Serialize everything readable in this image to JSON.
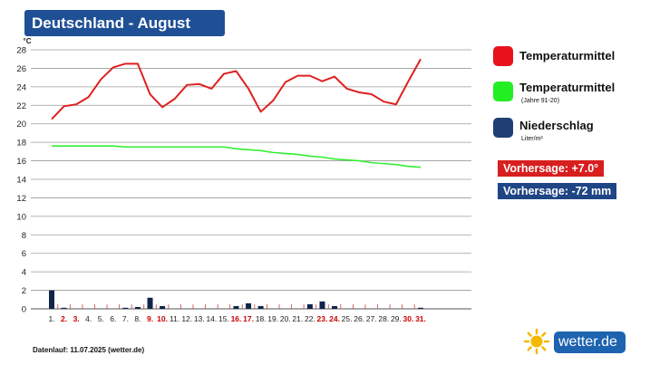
{
  "title": "Deutschland - August",
  "chart_data": {
    "type": "line",
    "ylabel": "°C",
    "ylim": [
      0,
      28
    ],
    "yticks": [
      0,
      2,
      4,
      6,
      8,
      10,
      12,
      14,
      16,
      18,
      20,
      22,
      24,
      26,
      28
    ],
    "categories": [
      "1.",
      "2.",
      "3.",
      "4.",
      "5.",
      "6.",
      "7.",
      "8.",
      "9.",
      "10.",
      "11.",
      "12.",
      "13.",
      "14.",
      "15.",
      "16.",
      "17.",
      "18.",
      "19.",
      "20.",
      "21.",
      "22.",
      "23.",
      "24.",
      "25.",
      "26.",
      "27.",
      "28.",
      "29.",
      "30.",
      "31."
    ],
    "highlight_days": [
      "2.",
      "3.",
      "9.",
      "10.",
      "16.",
      "17.",
      "23.",
      "24.",
      "30.",
      "31."
    ],
    "highlight_color": "#cc0000",
    "series": [
      {
        "name": "Temperaturmittel",
        "kind": "line",
        "color": "#e02020",
        "values": [
          20.5,
          21.9,
          22.1,
          22.9,
          24.8,
          26.1,
          26.5,
          26.5,
          23.2,
          21.8,
          22.7,
          24.2,
          24.3,
          23.8,
          25.4,
          25.7,
          23.8,
          21.3,
          22.5,
          24.5,
          25.2,
          25.2,
          24.6,
          25.1,
          23.8,
          23.4,
          23.2,
          22.4,
          22.1,
          24.6,
          27.0
        ]
      },
      {
        "name": "Temperaturmittel",
        "subname": "(Jahre 91-20)",
        "kind": "line",
        "color": "#33ee33",
        "values": [
          17.6,
          17.6,
          17.6,
          17.6,
          17.6,
          17.6,
          17.5,
          17.5,
          17.5,
          17.5,
          17.5,
          17.5,
          17.5,
          17.5,
          17.5,
          17.3,
          17.2,
          17.1,
          16.9,
          16.8,
          16.7,
          16.5,
          16.4,
          16.2,
          16.1,
          16.0,
          15.8,
          15.7,
          15.6,
          15.4,
          15.3
        ]
      },
      {
        "name": "Niederschlag",
        "unit": "Liter/m²",
        "kind": "bar",
        "color": "#0f2548",
        "values": [
          2.0,
          0.1,
          0,
          0,
          0,
          0,
          0.1,
          0.2,
          1.2,
          0.3,
          0,
          0,
          0,
          0,
          0,
          0.3,
          0.6,
          0.3,
          0,
          0,
          0,
          0.5,
          0.8,
          0.3,
          0,
          0,
          0,
          0,
          0,
          0,
          0.1
        ]
      }
    ],
    "grid": true,
    "legend_position": "right"
  },
  "legend": [
    {
      "label": "Temperaturmittel",
      "sub": "",
      "color": "#e8121c"
    },
    {
      "label": "Temperaturmittel",
      "sub": "(Jahre 91-20)",
      "color": "#22ee22"
    },
    {
      "label": "Niederschlag",
      "sub": "Liter/m²",
      "color": "#1f3f73"
    }
  ],
  "forecast_temp": {
    "text": "Vorhersage: +7.0°",
    "color": "#d81e1e"
  },
  "forecast_rain": {
    "text": "Vorhersage: -72 mm",
    "color": "#1f4585"
  },
  "footer": "Datenlauf: 11.07.2025 (wetter.de)",
  "brand": {
    "text": "wetter.de"
  }
}
